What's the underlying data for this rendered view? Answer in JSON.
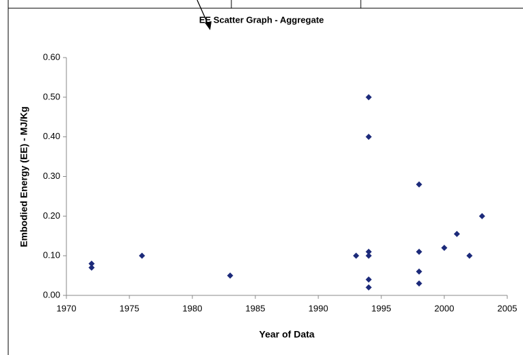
{
  "chart_data": {
    "type": "scatter",
    "title": "EE Scatter Graph - Aggregate",
    "x_label": "Year of Data",
    "y_label": "Embodied Energy (EE) - MJ/Kg",
    "color": "#1c2a7a",
    "x": [
      1972,
      1972,
      1976,
      1983,
      1993,
      1994,
      1994,
      1994,
      1994,
      1994,
      1994,
      1998,
      1998,
      1998,
      1998,
      2000,
      2001,
      2002,
      2003
    ],
    "values": [
      0.08,
      0.07,
      0.1,
      0.05,
      0.1,
      0.5,
      0.4,
      0.11,
      0.1,
      0.04,
      0.02,
      0.28,
      0.11,
      0.06,
      0.03,
      0.12,
      0.155,
      0.1,
      0.2
    ],
    "xlim": [
      1970,
      2005
    ],
    "xticks": [
      1970,
      1975,
      1980,
      1985,
      1990,
      1995,
      2000,
      2005
    ],
    "ylim": [
      0,
      0.6
    ],
    "yticks": [
      {
        "value": 0,
        "label": "0.00"
      },
      {
        "value": 0.1,
        "label": "0.10"
      },
      {
        "value": 0.2,
        "label": "0.20"
      },
      {
        "value": 0.3,
        "label": "0.30"
      },
      {
        "value": 0.4,
        "label": "0.40"
      },
      {
        "value": 0.5,
        "label": "0.50"
      },
      {
        "value": 0.6,
        "label": "0.60"
      }
    ],
    "grid": false
  }
}
